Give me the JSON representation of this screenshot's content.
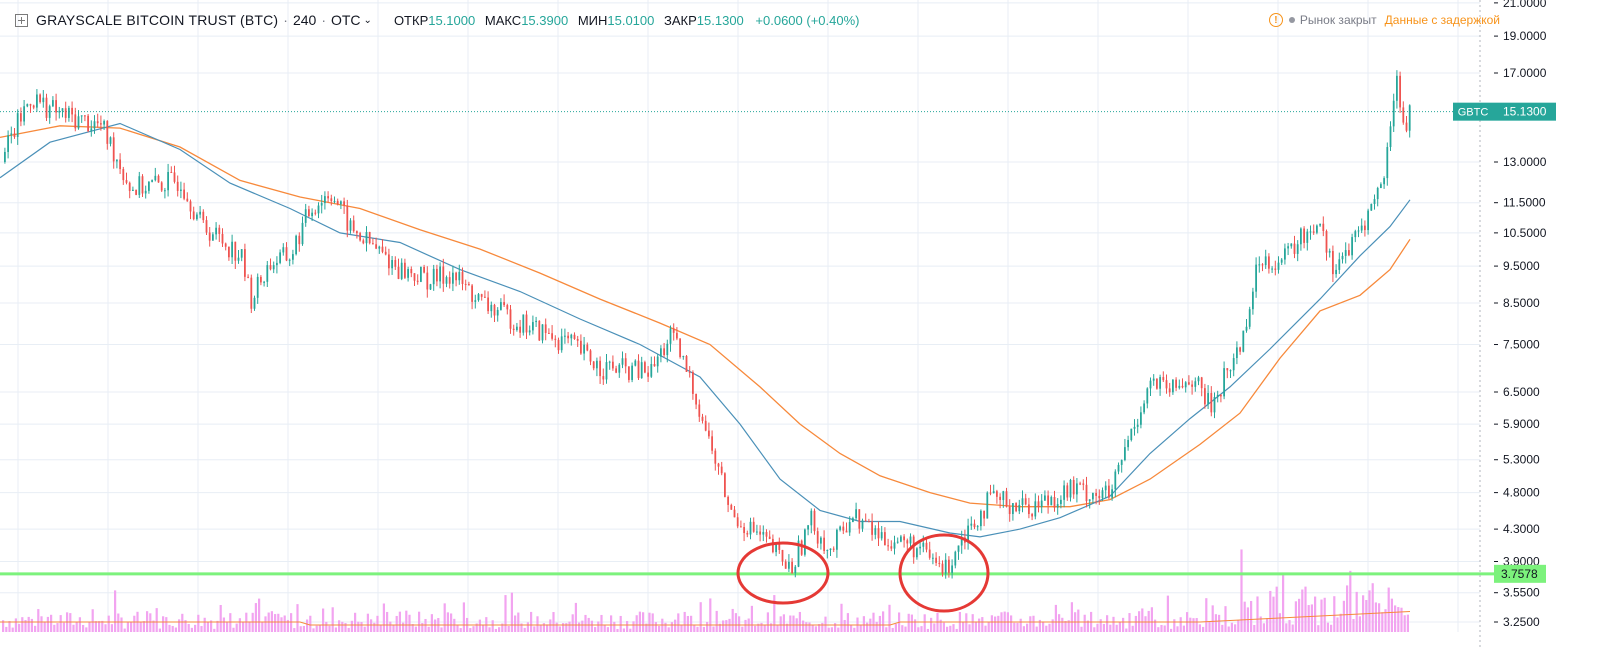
{
  "header": {
    "title": "GRAYSCALE BITCOIN TRUST (BTC)",
    "interval": "240",
    "exchange": "OTC",
    "separator": "·",
    "open_label": "ОТКР",
    "open_value": "15.1000",
    "high_label": "МАКС",
    "high_value": "15.3900",
    "low_label": "МИН",
    "low_value": "15.0100",
    "close_label": "ЗАКР",
    "close_value": "15.1300",
    "change": "+0.0600 (+0.40%)"
  },
  "status": {
    "warning_icon": "!",
    "market": "Рынок закрыт",
    "delayed": "Данные с задержкой"
  },
  "colors": {
    "up": "#26a69a",
    "down": "#ef5350",
    "ma_fast": "#4a90b8",
    "ma_slow": "#f7893b",
    "volume": "#f2a4f0",
    "support": "#7cf27c",
    "annotation": "#e53935",
    "grid": "#e8eef5"
  },
  "chart_data": {
    "type": "candlestick",
    "symbol": "GBTC",
    "last_price": 15.13,
    "price_scale": "log",
    "y_ticks": [
      21.0,
      19.0,
      17.0,
      13.0,
      11.5,
      10.5,
      9.5,
      8.5,
      7.5,
      6.5,
      5.9,
      5.3,
      4.8,
      4.3,
      3.9,
      3.55,
      3.25
    ],
    "y_tick_labels": [
      "21.0000",
      "19.0000",
      "17.0000",
      "13.0000",
      "11.5000",
      "10.5000",
      "9.5000",
      "8.5000",
      "7.5000",
      "6.5000",
      "5.9000",
      "5.3000",
      "4.8000",
      "4.3000",
      "3.9000",
      "3.5500",
      "3.2500"
    ],
    "last_price_badge": {
      "symbol": "GBTC",
      "value": "15.1300"
    },
    "support_line": {
      "value": 3.7578,
      "label": "3.7578"
    },
    "price_path": [
      [
        0,
        13.0
      ],
      [
        30,
        15.8
      ],
      [
        60,
        15.0
      ],
      [
        100,
        14.5
      ],
      [
        130,
        12.0
      ],
      [
        180,
        12.3
      ],
      [
        200,
        10.8
      ],
      [
        240,
        9.8
      ],
      [
        250,
        8.6
      ],
      [
        270,
        9.6
      ],
      [
        290,
        9.8
      ],
      [
        310,
        11.3
      ],
      [
        330,
        11.9
      ],
      [
        350,
        10.6
      ],
      [
        400,
        9.4
      ],
      [
        430,
        9.1
      ],
      [
        450,
        9.3
      ],
      [
        480,
        8.5
      ],
      [
        520,
        8.0
      ],
      [
        570,
        7.5
      ],
      [
        600,
        7.0
      ],
      [
        650,
        6.9
      ],
      [
        670,
        7.7
      ],
      [
        690,
        6.7
      ],
      [
        710,
        5.5
      ],
      [
        730,
        4.5
      ],
      [
        760,
        4.2
      ],
      [
        790,
        3.8
      ],
      [
        810,
        4.4
      ],
      [
        830,
        4.0
      ],
      [
        850,
        4.5
      ],
      [
        880,
        4.2
      ],
      [
        910,
        4.1
      ],
      [
        945,
        3.8
      ],
      [
        960,
        4.2
      ],
      [
        990,
        4.7
      ],
      [
        1030,
        4.6
      ],
      [
        1070,
        4.85
      ],
      [
        1110,
        4.75
      ],
      [
        1125,
        5.5
      ],
      [
        1150,
        6.7
      ],
      [
        1170,
        6.5
      ],
      [
        1190,
        6.8
      ],
      [
        1210,
        6.2
      ],
      [
        1240,
        7.5
      ],
      [
        1260,
        9.8
      ],
      [
        1280,
        9.6
      ],
      [
        1300,
        10.3
      ],
      [
        1320,
        11.0
      ],
      [
        1330,
        9.5
      ],
      [
        1350,
        10.0
      ],
      [
        1370,
        11.3
      ],
      [
        1385,
        12.6
      ],
      [
        1395,
        17.1
      ],
      [
        1402,
        14.4
      ],
      [
        1410,
        15.13
      ]
    ],
    "ma_fast_path": [
      [
        0,
        12.4
      ],
      [
        50,
        13.8
      ],
      [
        120,
        14.6
      ],
      [
        180,
        13.5
      ],
      [
        230,
        12.2
      ],
      [
        290,
        11.3
      ],
      [
        340,
        10.5
      ],
      [
        400,
        10.2
      ],
      [
        460,
        9.4
      ],
      [
        520,
        8.8
      ],
      [
        580,
        8.1
      ],
      [
        640,
        7.5
      ],
      [
        700,
        6.8
      ],
      [
        740,
        5.9
      ],
      [
        780,
        5.0
      ],
      [
        820,
        4.55
      ],
      [
        860,
        4.4
      ],
      [
        900,
        4.4
      ],
      [
        950,
        4.25
      ],
      [
        980,
        4.2
      ],
      [
        1020,
        4.3
      ],
      [
        1060,
        4.45
      ],
      [
        1110,
        4.75
      ],
      [
        1150,
        5.4
      ],
      [
        1190,
        6.0
      ],
      [
        1230,
        6.6
      ],
      [
        1270,
        7.4
      ],
      [
        1320,
        8.6
      ],
      [
        1360,
        9.8
      ],
      [
        1390,
        10.7
      ],
      [
        1410,
        11.6
      ]
    ],
    "ma_slow_path": [
      [
        0,
        14.0
      ],
      [
        60,
        14.5
      ],
      [
        120,
        14.4
      ],
      [
        180,
        13.6
      ],
      [
        240,
        12.3
      ],
      [
        300,
        11.7
      ],
      [
        360,
        11.3
      ],
      [
        420,
        10.6
      ],
      [
        480,
        10.0
      ],
      [
        540,
        9.3
      ],
      [
        600,
        8.6
      ],
      [
        660,
        8.0
      ],
      [
        710,
        7.5
      ],
      [
        760,
        6.6
      ],
      [
        800,
        5.9
      ],
      [
        840,
        5.4
      ],
      [
        880,
        5.05
      ],
      [
        930,
        4.8
      ],
      [
        970,
        4.65
      ],
      [
        1020,
        4.6
      ],
      [
        1070,
        4.6
      ],
      [
        1110,
        4.7
      ],
      [
        1150,
        5.0
      ],
      [
        1200,
        5.55
      ],
      [
        1240,
        6.1
      ],
      [
        1280,
        7.2
      ],
      [
        1320,
        8.3
      ],
      [
        1360,
        8.7
      ],
      [
        1390,
        9.4
      ],
      [
        1410,
        10.3
      ]
    ],
    "xlabel": "",
    "ylabel": ""
  }
}
